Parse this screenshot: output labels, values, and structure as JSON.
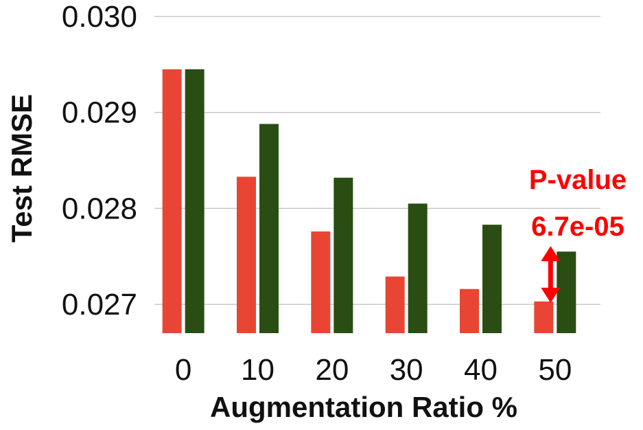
{
  "chart_data": {
    "type": "bar",
    "title": "",
    "xlabel": "Augmentation Ratio %",
    "ylabel": "Test RMSE",
    "categories": [
      "0",
      "10",
      "20",
      "30",
      "40",
      "50"
    ],
    "ylim": [
      0.0267,
      0.03
    ],
    "yticks": [
      "0.030",
      "0.029",
      "0.028",
      "0.027"
    ],
    "ytick_values": [
      0.03,
      0.029,
      0.028,
      0.027
    ],
    "grid": true,
    "series": [
      {
        "color": "#e84535",
        "values": [
          0.02945,
          0.02833,
          0.02776,
          0.02729,
          0.02716,
          0.02703
        ]
      },
      {
        "color": "#2a4d14",
        "values": [
          0.02945,
          0.02888,
          0.02832,
          0.02805,
          0.02783,
          0.02755
        ]
      }
    ],
    "annotation": {
      "lines": [
        "P-value",
        "6.7e-05"
      ],
      "category": "50",
      "color": "#ff0000"
    }
  }
}
